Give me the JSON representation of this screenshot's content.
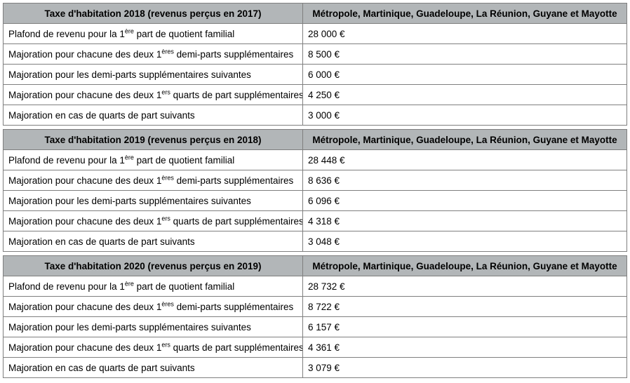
{
  "colors": {
    "header_bg": "#b2b6b8",
    "border": "#7f7f7f",
    "text": "#000000",
    "page_background": "#ffffff"
  },
  "tables": [
    {
      "header": {
        "title": "Taxe d'habitation 2018 (revenus perçus en 2017)",
        "region": "Métropole, Martinique, Guadeloupe, La Réunion, Guyane et Mayotte"
      },
      "rows": [
        {
          "pre": "Plafond de revenu pour la 1",
          "sup": "ère",
          "post": " part de quotient familial",
          "value": "28 000 €"
        },
        {
          "pre": "Majoration pour chacune des deux 1",
          "sup": "ères",
          "post": " demi-parts supplémentaires",
          "value": "8 500 €"
        },
        {
          "pre": "Majoration pour les demi-parts supplémentaires suivantes",
          "sup": "",
          "post": "",
          "value": "6 000 €"
        },
        {
          "pre": "Majoration pour chacune des deux 1",
          "sup": "ers",
          "post": " quarts de part supplémentaires",
          "value": "4 250 €"
        },
        {
          "pre": "Majoration en cas de quarts de part suivants",
          "sup": "",
          "post": "",
          "value": "3 000 €"
        }
      ]
    },
    {
      "header": {
        "title": "Taxe d'habitation 2019 (revenus perçus en 2018)",
        "region": "Métropole, Martinique, Guadeloupe, La Réunion, Guyane et Mayotte"
      },
      "rows": [
        {
          "pre": "Plafond de revenu pour la 1",
          "sup": "ère",
          "post": " part de quotient familial",
          "value": "28 448 €"
        },
        {
          "pre": "Majoration pour chacune des deux 1",
          "sup": "ères",
          "post": " demi-parts supplémentaires",
          "value": "8 636 €"
        },
        {
          "pre": "Majoration pour les demi-parts supplémentaires suivantes",
          "sup": "",
          "post": "",
          "value": "6 096 €"
        },
        {
          "pre": "Majoration pour chacune des deux 1",
          "sup": "ers",
          "post": " quarts de part supplémentaires",
          "value": "4 318 €"
        },
        {
          "pre": "Majoration en cas de quarts de part suivants",
          "sup": "",
          "post": "",
          "value": "3 048 €"
        }
      ]
    },
    {
      "header": {
        "title": "Taxe d'habitation 2020 (revenus perçus en 2019)",
        "region": "Métropole, Martinique, Guadeloupe, La Réunion, Guyane et Mayotte"
      },
      "rows": [
        {
          "pre": "Plafond de revenu pour la 1",
          "sup": "ère",
          "post": " part de quotient familial",
          "value": "28 732 €"
        },
        {
          "pre": "Majoration pour chacune des deux 1",
          "sup": "ères",
          "post": " demi-parts supplémentaires",
          "value": "8 722 €"
        },
        {
          "pre": "Majoration pour les demi-parts supplémentaires suivantes",
          "sup": "",
          "post": "",
          "value": "6 157 €"
        },
        {
          "pre": "Majoration pour chacune des deux 1",
          "sup": "ers",
          "post": " quarts de part supplémentaires",
          "value": "4 361 €"
        },
        {
          "pre": "Majoration en cas de quarts de part suivants",
          "sup": "",
          "post": "",
          "value": "3 079 €"
        }
      ]
    }
  ]
}
